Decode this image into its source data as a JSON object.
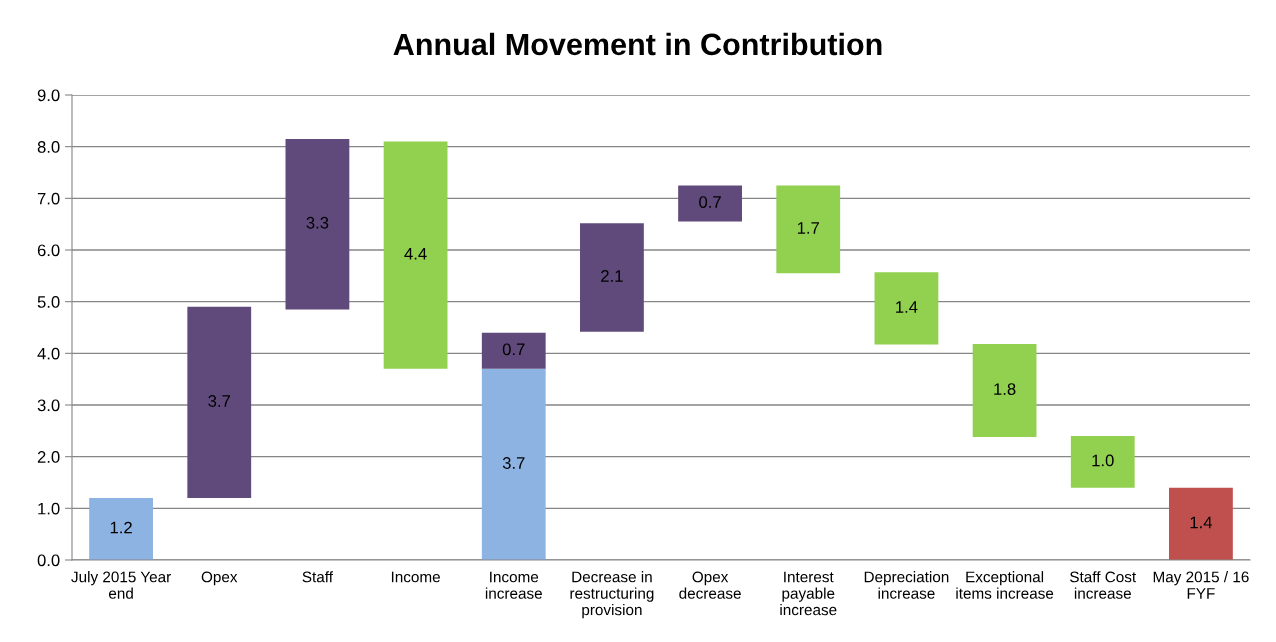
{
  "chart_data": {
    "type": "bar",
    "title": "Annual Movement in Contribution",
    "categories": [
      "July 2015 Year\nend",
      "Opex",
      "Staff",
      "Income",
      "Income\nincrease",
      "Decrease in\nrestructuring\nprovision",
      "Opex\ndecrease",
      "Interest\npayable\nincrease",
      "Depreciation\nincrease",
      "Exceptional\nitems increase",
      "Staff Cost\nincrease",
      "May 2015 / 16\nFYF"
    ],
    "series": [
      {
        "color": "#8db3e2",
        "values": [
          1.2,
          null,
          null,
          null,
          3.7,
          null,
          null,
          null,
          null,
          null,
          null,
          null
        ],
        "base": [
          0,
          null,
          null,
          null,
          0,
          null,
          null,
          null,
          null,
          null,
          null,
          null
        ],
        "value_labels": [
          "1.2",
          null,
          null,
          null,
          "3.7",
          null,
          null,
          null,
          null,
          null,
          null,
          null
        ]
      },
      {
        "color": "#604a7b",
        "values": [
          null,
          3.7,
          3.3,
          null,
          0.7,
          2.1,
          0.7,
          null,
          null,
          null,
          null,
          null
        ],
        "base": [
          null,
          1.2,
          4.85,
          null,
          3.7,
          4.42,
          6.55,
          null,
          null,
          null,
          null,
          null
        ],
        "value_labels": [
          null,
          "3.7",
          "3.3",
          null,
          "0.7",
          "2.1",
          "0.7",
          null,
          null,
          null,
          null,
          null
        ]
      },
      {
        "color": "#92d050",
        "values": [
          null,
          null,
          null,
          4.4,
          null,
          null,
          null,
          1.7,
          1.4,
          1.8,
          1.0,
          null
        ],
        "base": [
          null,
          null,
          null,
          3.7,
          null,
          null,
          null,
          5.55,
          4.17,
          2.38,
          1.4,
          null
        ],
        "value_labels": [
          null,
          null,
          null,
          "4.4",
          null,
          null,
          null,
          "1.7",
          "1.4",
          "1.8",
          "1.0",
          null
        ]
      },
      {
        "color": "#c0504d",
        "values": [
          null,
          null,
          null,
          null,
          null,
          null,
          null,
          null,
          null,
          null,
          null,
          1.4
        ],
        "base": [
          null,
          null,
          null,
          null,
          null,
          null,
          null,
          null,
          null,
          null,
          null,
          0
        ],
        "value_labels": [
          null,
          null,
          null,
          null,
          null,
          null,
          null,
          null,
          null,
          null,
          null,
          "1.4"
        ]
      }
    ],
    "ylim": [
      0,
      9
    ],
    "yticks": [
      {
        "value": 0,
        "label": "0.0"
      },
      {
        "value": 1,
        "label": "1.0"
      },
      {
        "value": 2,
        "label": "2.0"
      },
      {
        "value": 3,
        "label": "3.0"
      },
      {
        "value": 4,
        "label": "4.0"
      },
      {
        "value": 5,
        "label": "5.0"
      },
      {
        "value": 6,
        "label": "6.0"
      },
      {
        "value": 7,
        "label": "7.0"
      },
      {
        "value": 8,
        "label": "8.0"
      },
      {
        "value": 9,
        "label": "9.0"
      }
    ],
    "grid": "y",
    "legend": false
  }
}
